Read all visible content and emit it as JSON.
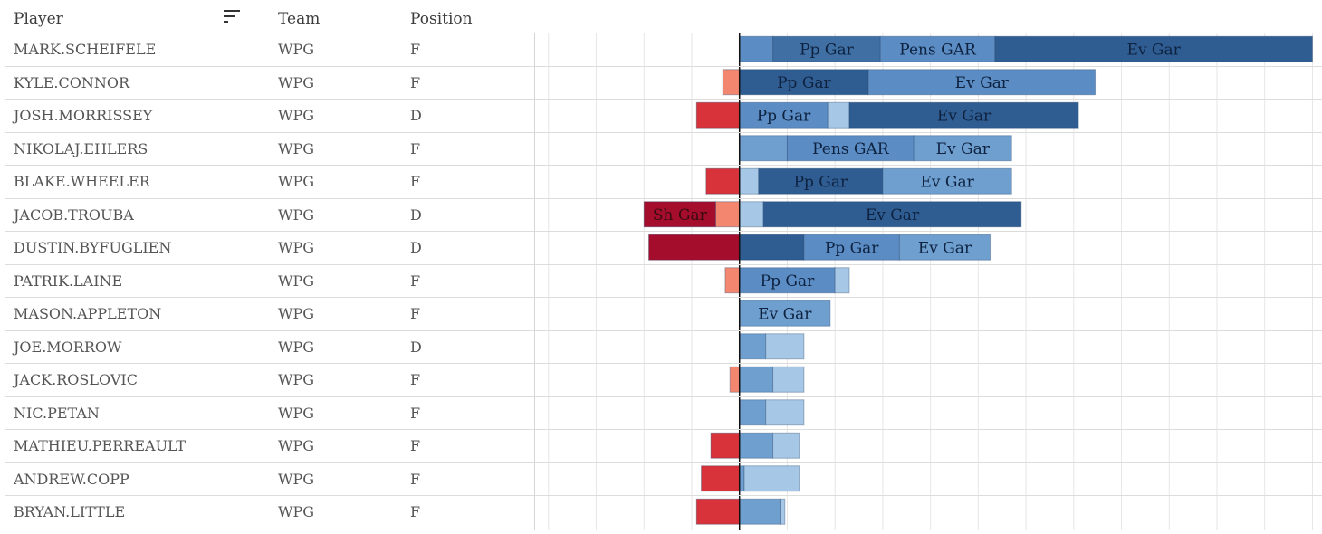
{
  "header": {
    "player": "Player",
    "team": "Team",
    "position": "Position"
  },
  "icons": {
    "sort": "sort-descending-icon"
  },
  "colors": {
    "ev": "#2f5d92",
    "ev_light": "#6f9fcf",
    "ev_lighter": "#a6c8e6",
    "pp": "#3f6fa3",
    "pens": "#5b8dc4",
    "neg_light": "#f2866f",
    "neg_mid": "#d8333a",
    "neg_dark": "#a50d2c"
  },
  "players": [
    {
      "name": "MARK.SCHEIFELE",
      "team": "WPG",
      "position": "F"
    },
    {
      "name": "KYLE.CONNOR",
      "team": "WPG",
      "position": "F"
    },
    {
      "name": "JOSH.MORRISSEY",
      "team": "WPG",
      "position": "D"
    },
    {
      "name": "NIKOLAJ.EHLERS",
      "team": "WPG",
      "position": "F"
    },
    {
      "name": "BLAKE.WHEELER",
      "team": "WPG",
      "position": "F"
    },
    {
      "name": "JACOB.TROUBA",
      "team": "WPG",
      "position": "D"
    },
    {
      "name": "DUSTIN.BYFUGLIEN",
      "team": "WPG",
      "position": "D"
    },
    {
      "name": "PATRIK.LAINE",
      "team": "WPG",
      "position": "F"
    },
    {
      "name": "MASON.APPLETON",
      "team": "WPG",
      "position": "F"
    },
    {
      "name": "JOE.MORROW",
      "team": "WPG",
      "position": "D"
    },
    {
      "name": "JACK.ROSLOVIC",
      "team": "WPG",
      "position": "F"
    },
    {
      "name": "NIC.PETAN",
      "team": "WPG",
      "position": "F"
    },
    {
      "name": "MATHIEU.PERREAULT",
      "team": "WPG",
      "position": "F"
    },
    {
      "name": "ANDREW.COPP",
      "team": "WPG",
      "position": "F"
    },
    {
      "name": "BRYAN.LITTLE",
      "team": "WPG",
      "position": "F"
    }
  ],
  "chart_data": {
    "type": "bar",
    "stacked": true,
    "orientation": "horizontal",
    "xlim": [
      -4.3,
      12.2
    ],
    "gridlines": true,
    "categories": [
      "MARK.SCHEIFELE",
      "KYLE.CONNOR",
      "JOSH.MORRISSEY",
      "NIKOLAJ.EHLERS",
      "BLAKE.WHEELER",
      "JACOB.TROUBA",
      "DUSTIN.BYFUGLIEN",
      "PATRIK.LAINE",
      "MASON.APPLETON",
      "JOE.MORROW",
      "JACK.ROSLOVIC",
      "NIC.PETAN",
      "MATHIEU.PERREAULT",
      "ANDREW.COPP",
      "BRYAN.LITTLE"
    ],
    "rows": [
      {
        "segments": [
          {
            "v": 0.7,
            "c": "pens"
          },
          {
            "v": 2.25,
            "c": "pp",
            "label": "Pp Gar"
          },
          {
            "v": 2.4,
            "c": "pens",
            "label": "Pens GAR"
          },
          {
            "v": 6.65,
            "c": "ev",
            "label": "Ev Gar"
          }
        ]
      },
      {
        "segments": [
          {
            "v": -0.35,
            "c": "neg_light"
          },
          {
            "v": 2.7,
            "c": "ev",
            "label": "Pp Gar"
          },
          {
            "v": 4.75,
            "c": "pens",
            "label": "Ev Gar"
          }
        ]
      },
      {
        "segments": [
          {
            "v": -0.9,
            "c": "neg_mid"
          },
          {
            "v": 1.85,
            "c": "pens",
            "label": "Pp Gar"
          },
          {
            "v": 0.45,
            "c": "ev_lighter"
          },
          {
            "v": 4.8,
            "c": "ev",
            "label": "Ev Gar"
          }
        ]
      },
      {
        "segments": [
          {
            "v": 1.0,
            "c": "ev_light"
          },
          {
            "v": 2.65,
            "c": "pens",
            "label": "Pens GAR"
          },
          {
            "v": 2.05,
            "c": "ev_light",
            "label": "Ev Gar"
          }
        ]
      },
      {
        "segments": [
          {
            "v": -0.7,
            "c": "neg_mid"
          },
          {
            "v": 0.4,
            "c": "ev_lighter"
          },
          {
            "v": 2.6,
            "c": "ev",
            "label": "Pp Gar"
          },
          {
            "v": 2.7,
            "c": "ev_light",
            "label": "Ev Gar"
          }
        ]
      },
      {
        "segments": [
          {
            "v": -0.5,
            "c": "neg_light"
          },
          {
            "v": -1.5,
            "c": "neg_dark",
            "label": "Sh Gar"
          },
          {
            "v": 0.5,
            "c": "ev_lighter"
          },
          {
            "v": 5.4,
            "c": "ev",
            "label": "Ev Gar"
          }
        ]
      },
      {
        "segments": [
          {
            "v": -1.9,
            "c": "neg_dark"
          },
          {
            "v": 1.35,
            "c": "ev"
          },
          {
            "v": 2.0,
            "c": "pens",
            "label": "Pp Gar"
          },
          {
            "v": 1.9,
            "c": "ev_light",
            "label": "Ev Gar"
          }
        ]
      },
      {
        "segments": [
          {
            "v": -0.3,
            "c": "neg_light"
          },
          {
            "v": 2.0,
            "c": "pens",
            "label": "Pp Gar"
          },
          {
            "v": 0.3,
            "c": "ev_lighter"
          }
        ]
      },
      {
        "segments": [
          {
            "v": 1.9,
            "c": "ev_light",
            "label": "Ev Gar"
          }
        ]
      },
      {
        "segments": [
          {
            "v": 0.55,
            "c": "ev_light"
          },
          {
            "v": 0.8,
            "c": "ev_lighter"
          }
        ]
      },
      {
        "segments": [
          {
            "v": -0.2,
            "c": "neg_light"
          },
          {
            "v": 0.7,
            "c": "ev_light"
          },
          {
            "v": 0.65,
            "c": "ev_lighter"
          }
        ]
      },
      {
        "segments": [
          {
            "v": 0.55,
            "c": "ev_light"
          },
          {
            "v": 0.8,
            "c": "ev_lighter"
          }
        ]
      },
      {
        "segments": [
          {
            "v": -0.6,
            "c": "neg_mid"
          },
          {
            "v": 0.7,
            "c": "ev_light"
          },
          {
            "v": 0.55,
            "c": "ev_lighter"
          }
        ]
      },
      {
        "segments": [
          {
            "v": -0.8,
            "c": "neg_mid"
          },
          {
            "v": 0.1,
            "c": "ev_light"
          },
          {
            "v": 1.15,
            "c": "ev_lighter"
          }
        ]
      },
      {
        "segments": [
          {
            "v": -0.9,
            "c": "neg_mid"
          },
          {
            "v": 0.85,
            "c": "ev_light"
          },
          {
            "v": 0.1,
            "c": "ev_lighter"
          }
        ]
      }
    ]
  }
}
